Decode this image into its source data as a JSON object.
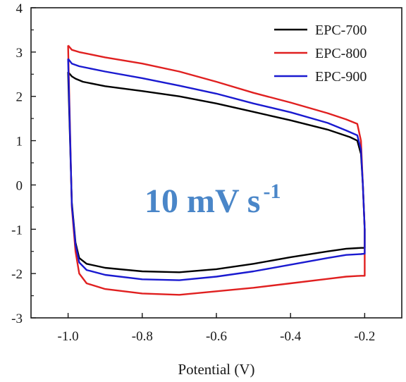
{
  "chart_data": {
    "type": "line",
    "title": "",
    "xlabel": "Potential (V)",
    "ylabel": "",
    "xlim": [
      -1.1,
      -0.1
    ],
    "ylim": [
      -3,
      4
    ],
    "x_ticks": [
      -1.0,
      -0.8,
      -0.6,
      -0.4,
      -0.2
    ],
    "x_tick_labels": [
      "-1.0",
      "-0.8",
      "-0.6",
      "-0.4",
      "-0.2"
    ],
    "y_ticks": [
      -3,
      -2,
      -1,
      0,
      1,
      2,
      3,
      4
    ],
    "y_tick_labels": [
      "-3",
      "-2",
      "-1",
      "0",
      "1",
      "2",
      "3",
      "4"
    ],
    "grid": false,
    "legend_position": "top-right",
    "annotation": {
      "main": "10 mV s",
      "sup": "-1",
      "color": "#4a86c8"
    },
    "series": [
      {
        "name": "EPC-700",
        "color": "#000000",
        "x": [
          -1.0,
          -0.99,
          -0.98,
          -0.96,
          -0.9,
          -0.8,
          -0.7,
          -0.6,
          -0.5,
          -0.4,
          -0.3,
          -0.24,
          -0.22,
          -0.21,
          -0.205,
          -0.2,
          -0.2,
          -0.21,
          -0.25,
          -0.3,
          -0.4,
          -0.5,
          -0.6,
          -0.7,
          -0.8,
          -0.9,
          -0.95,
          -0.97,
          -0.98,
          -0.99,
          -1.0
        ],
        "y": [
          2.55,
          2.45,
          2.4,
          2.33,
          2.23,
          2.12,
          2.0,
          1.84,
          1.65,
          1.46,
          1.25,
          1.08,
          1.0,
          0.7,
          0.0,
          -1.0,
          -1.42,
          -1.42,
          -1.44,
          -1.5,
          -1.63,
          -1.78,
          -1.9,
          -1.97,
          -1.95,
          -1.87,
          -1.78,
          -1.65,
          -1.3,
          -0.4,
          2.55
        ]
      },
      {
        "name": "EPC-800",
        "color": "#e02020",
        "x": [
          -1.0,
          -0.99,
          -0.97,
          -0.9,
          -0.8,
          -0.7,
          -0.6,
          -0.5,
          -0.4,
          -0.3,
          -0.25,
          -0.22,
          -0.21,
          -0.205,
          -0.2,
          -0.2,
          -0.21,
          -0.25,
          -0.3,
          -0.4,
          -0.5,
          -0.6,
          -0.7,
          -0.8,
          -0.9,
          -0.95,
          -0.97,
          -0.98,
          -0.99,
          -1.0
        ],
        "y": [
          3.15,
          3.05,
          3.0,
          2.88,
          2.74,
          2.56,
          2.33,
          2.08,
          1.86,
          1.62,
          1.48,
          1.38,
          1.0,
          0.0,
          -1.0,
          -2.05,
          -2.05,
          -2.07,
          -2.12,
          -2.22,
          -2.32,
          -2.4,
          -2.48,
          -2.45,
          -2.35,
          -2.22,
          -2.0,
          -1.5,
          -0.5,
          3.15
        ]
      },
      {
        "name": "EPC-900",
        "color": "#1a1ad0",
        "x": [
          -1.0,
          -0.99,
          -0.97,
          -0.9,
          -0.8,
          -0.7,
          -0.6,
          -0.5,
          -0.4,
          -0.3,
          -0.25,
          -0.22,
          -0.21,
          -0.205,
          -0.2,
          -0.2,
          -0.21,
          -0.25,
          -0.3,
          -0.4,
          -0.5,
          -0.6,
          -0.7,
          -0.8,
          -0.9,
          -0.95,
          -0.97,
          -0.98,
          -0.99,
          -1.0
        ],
        "y": [
          2.85,
          2.74,
          2.68,
          2.56,
          2.41,
          2.24,
          2.06,
          1.84,
          1.64,
          1.4,
          1.23,
          1.12,
          0.8,
          0.0,
          -1.0,
          -1.55,
          -1.56,
          -1.58,
          -1.65,
          -1.8,
          -1.95,
          -2.07,
          -2.15,
          -2.13,
          -2.03,
          -1.92,
          -1.75,
          -1.35,
          -0.45,
          2.85
        ]
      }
    ]
  }
}
